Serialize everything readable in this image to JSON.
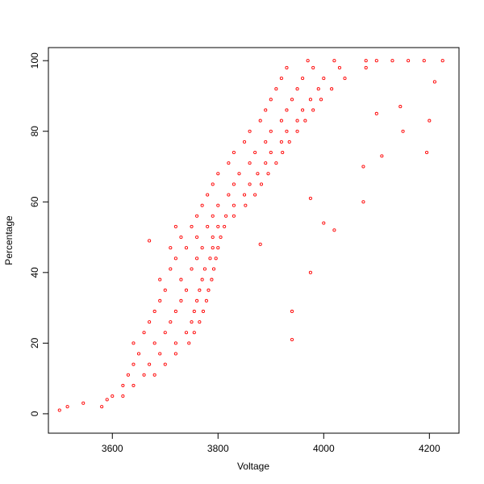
{
  "chart_data": {
    "type": "scatter",
    "x_label": "Voltage",
    "y_label": "Percentage",
    "color": "#ff0000",
    "xlim": [
      3479,
      4256
    ],
    "ylim": [
      -5.5,
      103.7
    ],
    "xticks": [
      3600,
      3800,
      4000,
      4200
    ],
    "yticks": [
      0,
      20,
      40,
      60,
      80,
      100
    ],
    "x": [
      3600,
      3620,
      3620,
      3640,
      3630,
      3660,
      3680,
      3640,
      3670,
      3700,
      3650,
      3690,
      3720,
      3640,
      3680,
      3720,
      3745,
      3660,
      3700,
      3740,
      3755,
      3670,
      3710,
      3750,
      3765,
      3680,
      3720,
      3755,
      3772,
      3690,
      3730,
      3760,
      3778,
      3700,
      3740,
      3765,
      3782,
      3690,
      3730,
      3770,
      3788,
      3710,
      3750,
      3775,
      3792,
      3720,
      3760,
      3785,
      3796,
      3710,
      3740,
      3770,
      3790,
      3800,
      3730,
      3760,
      3790,
      3805,
      3720,
      3750,
      3780,
      3800,
      3812,
      3760,
      3790,
      3815,
      3830,
      3770,
      3800,
      3830,
      3852,
      3780,
      3820,
      3850,
      3870,
      3790,
      3830,
      3860,
      3882,
      3800,
      3840,
      3875,
      3895,
      3820,
      3860,
      3890,
      3910,
      3830,
      3870,
      3900,
      3922,
      3850,
      3890,
      3920,
      3935,
      3860,
      3900,
      3930,
      3950,
      3880,
      3920,
      3950,
      3965,
      3890,
      3930,
      3960,
      3980,
      3900,
      3940,
      3975,
      3995,
      3910,
      3950,
      3990,
      4015,
      3920,
      3960,
      4000,
      4040,
      3930,
      3980,
      4030,
      4080,
      3970,
      4020,
      4080,
      4100,
      4130,
      4160,
      4190,
      4225,
      3500,
      3515,
      3545,
      3580,
      3590,
      3670,
      3880,
      3940,
      3940,
      3975,
      3975,
      4000,
      4020,
      4075,
      4075,
      4100,
      4110,
      4150,
      4145,
      4195,
      4200,
      4210
    ],
    "values": [
      5,
      5,
      8,
      8,
      11,
      11,
      11,
      14,
      14,
      14,
      17,
      17,
      17,
      20,
      20,
      20,
      20,
      23,
      23,
      23,
      23,
      26,
      26,
      26,
      26,
      29,
      29,
      29,
      29,
      32,
      32,
      32,
      32,
      35,
      35,
      35,
      35,
      38,
      38,
      38,
      38,
      41,
      41,
      41,
      41,
      44,
      44,
      44,
      44,
      47,
      47,
      47,
      47,
      47,
      50,
      50,
      50,
      50,
      53,
      53,
      53,
      53,
      53,
      56,
      56,
      56,
      56,
      59,
      59,
      59,
      59,
      62,
      62,
      62,
      62,
      65,
      65,
      65,
      65,
      68,
      68,
      68,
      68,
      71,
      71,
      71,
      71,
      74,
      74,
      74,
      74,
      77,
      77,
      77,
      77,
      80,
      80,
      80,
      80,
      83,
      83,
      83,
      83,
      86,
      86,
      86,
      86,
      89,
      89,
      89,
      89,
      92,
      92,
      92,
      92,
      95,
      95,
      95,
      95,
      98,
      98,
      98,
      98,
      100,
      100,
      100,
      100,
      100,
      100,
      100,
      100,
      1,
      2,
      3,
      2,
      4,
      49,
      48,
      21,
      29,
      40,
      61,
      54,
      52,
      60,
      70,
      85,
      73,
      80,
      87,
      74,
      83,
      94
    ]
  }
}
